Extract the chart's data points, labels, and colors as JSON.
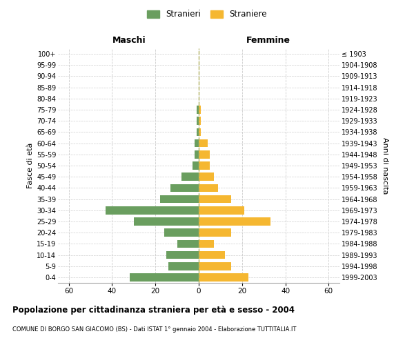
{
  "age_groups": [
    "0-4",
    "5-9",
    "10-14",
    "15-19",
    "20-24",
    "25-29",
    "30-34",
    "35-39",
    "40-44",
    "45-49",
    "50-54",
    "55-59",
    "60-64",
    "65-69",
    "70-74",
    "75-79",
    "80-84",
    "85-89",
    "90-94",
    "95-99",
    "100+"
  ],
  "birth_years": [
    "1999-2003",
    "1994-1998",
    "1989-1993",
    "1984-1988",
    "1979-1983",
    "1974-1978",
    "1969-1973",
    "1964-1968",
    "1959-1963",
    "1954-1958",
    "1949-1953",
    "1944-1948",
    "1939-1943",
    "1934-1938",
    "1929-1933",
    "1924-1928",
    "1919-1923",
    "1914-1918",
    "1909-1913",
    "1904-1908",
    "≤ 1903"
  ],
  "males": [
    32,
    14,
    15,
    10,
    16,
    30,
    43,
    18,
    13,
    8,
    3,
    2,
    2,
    1,
    1,
    1,
    0,
    0,
    0,
    0,
    0
  ],
  "females": [
    23,
    15,
    12,
    7,
    15,
    33,
    21,
    15,
    9,
    7,
    5,
    5,
    4,
    1,
    1,
    1,
    0,
    0,
    0,
    0,
    0
  ],
  "male_color": "#6a9e5f",
  "female_color": "#f5b731",
  "background_color": "#ffffff",
  "grid_color": "#cccccc",
  "title": "Popolazione per cittadinanza straniera per età e sesso - 2004",
  "subtitle": "COMUNE DI BORGO SAN GIACOMO (BS) - Dati ISTAT 1° gennaio 2004 - Elaborazione TUTTITALIA.IT",
  "xlabel_left": "Maschi",
  "xlabel_right": "Femmine",
  "ylabel_left": "Fasce di età",
  "ylabel_right": "Anni di nascita",
  "legend_male": "Stranieri",
  "legend_female": "Straniere",
  "xlim": 65
}
